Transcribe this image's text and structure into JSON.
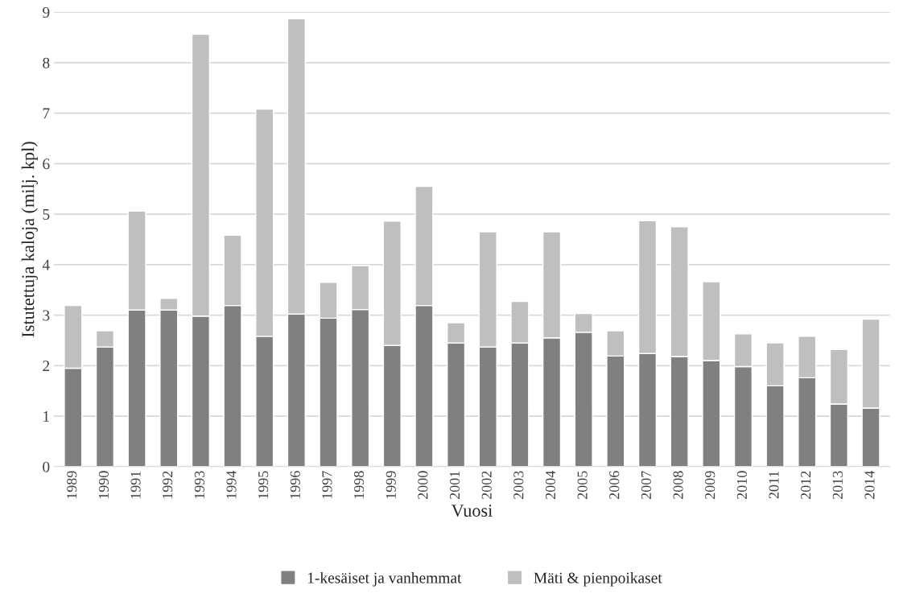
{
  "chart_data": {
    "type": "bar",
    "stacked": true,
    "xlabel": "Vuosi",
    "ylabel": "Istutettuja kaloja (milj. kpl)",
    "categories": [
      "1989",
      "1990",
      "1991",
      "1992",
      "1993",
      "1994",
      "1995",
      "1996",
      "1997",
      "1998",
      "1999",
      "2000",
      "2001",
      "2002",
      "2003",
      "2004",
      "2005",
      "2006",
      "2007",
      "2008",
      "2009",
      "2010",
      "2011",
      "2012",
      "2013",
      "2014"
    ],
    "series": [
      {
        "name": "1-kesäiset ja vanhemmat",
        "color": "#808080",
        "values": [
          1.95,
          2.37,
          3.1,
          3.1,
          2.98,
          3.19,
          2.58,
          3.02,
          2.94,
          3.11,
          2.4,
          3.19,
          2.45,
          2.37,
          2.45,
          2.55,
          2.66,
          2.19,
          2.24,
          2.18,
          2.1,
          1.98,
          1.6,
          1.76,
          1.24,
          1.16
        ]
      },
      {
        "name": "Mäti & pienpoikaset",
        "color": "#bfbfbf",
        "values": [
          1.24,
          0.32,
          1.96,
          0.23,
          5.58,
          1.39,
          4.5,
          5.85,
          0.71,
          0.87,
          2.46,
          2.36,
          0.4,
          2.28,
          0.82,
          2.1,
          0.37,
          0.5,
          2.63,
          2.57,
          1.56,
          0.65,
          0.85,
          0.82,
          1.08,
          1.76
        ]
      }
    ],
    "ylim": [
      0,
      9
    ],
    "yticks": [
      0,
      1,
      2,
      3,
      4,
      5,
      6,
      7,
      8,
      9
    ],
    "grid": "y",
    "legend": "bottom"
  }
}
